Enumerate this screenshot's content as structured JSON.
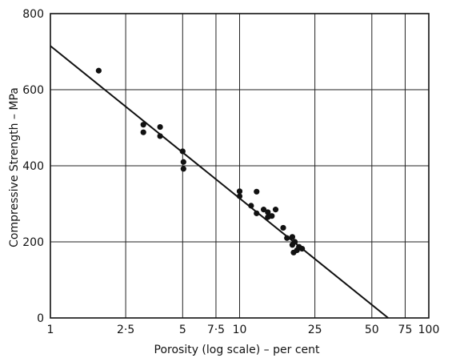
{
  "chart_data": {
    "type": "scatter",
    "title": "",
    "xlabel": "Porosity (log scale) – per cent",
    "ylabel": "Compressive Strength – MPa",
    "x_scale": "log",
    "xlim": [
      1,
      100
    ],
    "ylim": [
      0,
      800
    ],
    "grid": true,
    "x_ticks": [
      {
        "value": 1,
        "label": "1"
      },
      {
        "value": 2.5,
        "label": "2·5"
      },
      {
        "value": 5,
        "label": "5"
      },
      {
        "value": 7.5,
        "label": "7·5"
      },
      {
        "value": 10,
        "label": "10"
      },
      {
        "value": 25,
        "label": "25"
      },
      {
        "value": 50,
        "label": "50"
      },
      {
        "value": 75,
        "label": "75"
      },
      {
        "value": 100,
        "label": "100"
      }
    ],
    "y_ticks": [
      {
        "value": 0,
        "label": "0"
      },
      {
        "value": 200,
        "label": "200"
      },
      {
        "value": 400,
        "label": "400"
      },
      {
        "value": 600,
        "label": "600"
      },
      {
        "value": 800,
        "label": "800"
      }
    ],
    "points": [
      {
        "x": 1.8,
        "y": 650
      },
      {
        "x": 3.1,
        "y": 508
      },
      {
        "x": 3.1,
        "y": 488
      },
      {
        "x": 3.8,
        "y": 502
      },
      {
        "x": 3.8,
        "y": 478
      },
      {
        "x": 5.0,
        "y": 438
      },
      {
        "x": 5.05,
        "y": 410
      },
      {
        "x": 5.05,
        "y": 392
      },
      {
        "x": 10.0,
        "y": 333
      },
      {
        "x": 10.0,
        "y": 320
      },
      {
        "x": 11.5,
        "y": 295
      },
      {
        "x": 12.3,
        "y": 332
      },
      {
        "x": 12.3,
        "y": 275
      },
      {
        "x": 13.4,
        "y": 285
      },
      {
        "x": 14.1,
        "y": 278
      },
      {
        "x": 14.1,
        "y": 265
      },
      {
        "x": 14.8,
        "y": 268
      },
      {
        "x": 15.5,
        "y": 285
      },
      {
        "x": 17.0,
        "y": 237
      },
      {
        "x": 17.8,
        "y": 210
      },
      {
        "x": 19.0,
        "y": 213
      },
      {
        "x": 19.0,
        "y": 192
      },
      {
        "x": 19.3,
        "y": 172
      },
      {
        "x": 19.6,
        "y": 200
      },
      {
        "x": 20.1,
        "y": 178
      },
      {
        "x": 20.6,
        "y": 187
      },
      {
        "x": 21.4,
        "y": 182
      }
    ],
    "trend_line": {
      "x": [
        1,
        61
      ],
      "y": [
        715,
        0
      ]
    }
  }
}
